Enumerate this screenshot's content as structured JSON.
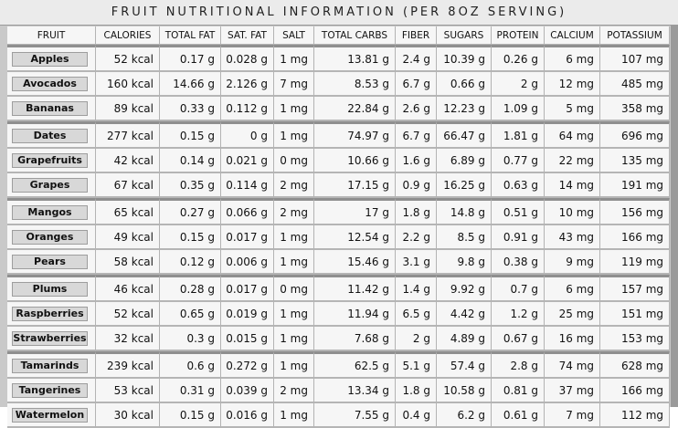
{
  "title": "FRUIT NUTRITIONAL INFORMATION (PER 8OZ SERVING)",
  "columns": [
    "FRUIT",
    "CALORIES",
    "TOTAL FAT",
    "SAT. FAT",
    "SALT",
    "TOTAL CARBS",
    "FIBER",
    "SUGARS",
    "PROTEIN",
    "CALCIUM",
    "POTASSIUM"
  ],
  "rows": [
    {
      "fruit": "Apples",
      "cells": [
        "52 kcal",
        "0.17 g",
        "0.028 g",
        "1 mg",
        "13.81 g",
        "2.4 g",
        "10.39 g",
        "0.26 g",
        "6 mg",
        "107 mg"
      ]
    },
    {
      "fruit": "Avocados",
      "cells": [
        "160 kcal",
        "14.66 g",
        "2.126 g",
        "7 mg",
        "8.53 g",
        "6.7 g",
        "0.66 g",
        "2 g",
        "12 mg",
        "485 mg"
      ]
    },
    {
      "fruit": "Bananas",
      "cells": [
        "89 kcal",
        "0.33 g",
        "0.112 g",
        "1 mg",
        "22.84 g",
        "2.6 g",
        "12.23 g",
        "1.09 g",
        "5 mg",
        "358 mg"
      ]
    },
    {
      "fruit": "Dates",
      "cells": [
        "277 kcal",
        "0.15 g",
        "0 g",
        "1 mg",
        "74.97 g",
        "6.7 g",
        "66.47 g",
        "1.81 g",
        "64 mg",
        "696 mg"
      ]
    },
    {
      "fruit": "Grapefruits",
      "cells": [
        "42 kcal",
        "0.14 g",
        "0.021 g",
        "0 mg",
        "10.66 g",
        "1.6 g",
        "6.89 g",
        "0.77 g",
        "22 mg",
        "135 mg"
      ]
    },
    {
      "fruit": "Grapes",
      "cells": [
        "67 kcal",
        "0.35 g",
        "0.114 g",
        "2 mg",
        "17.15 g",
        "0.9 g",
        "16.25 g",
        "0.63 g",
        "14 mg",
        "191 mg"
      ]
    },
    {
      "fruit": "Mangos",
      "cells": [
        "65 kcal",
        "0.27 g",
        "0.066 g",
        "2 mg",
        "17 g",
        "1.8 g",
        "14.8 g",
        "0.51 g",
        "10 mg",
        "156 mg"
      ]
    },
    {
      "fruit": "Oranges",
      "cells": [
        "49 kcal",
        "0.15 g",
        "0.017 g",
        "1 mg",
        "12.54 g",
        "2.2 g",
        "8.5 g",
        "0.91 g",
        "43 mg",
        "166 mg"
      ]
    },
    {
      "fruit": "Pears",
      "cells": [
        "58 kcal",
        "0.12 g",
        "0.006 g",
        "1 mg",
        "15.46 g",
        "3.1 g",
        "9.8 g",
        "0.38 g",
        "9 mg",
        "119 mg"
      ]
    },
    {
      "fruit": "Plums",
      "cells": [
        "46 kcal",
        "0.28 g",
        "0.017 g",
        "0 mg",
        "11.42 g",
        "1.4 g",
        "9.92 g",
        "0.7 g",
        "6 mg",
        "157 mg"
      ]
    },
    {
      "fruit": "Raspberries",
      "cells": [
        "52 kcal",
        "0.65 g",
        "0.019 g",
        "1 mg",
        "11.94 g",
        "6.5 g",
        "4.42 g",
        "1.2 g",
        "25 mg",
        "151 mg"
      ]
    },
    {
      "fruit": "Strawberries",
      "cells": [
        "32 kcal",
        "0.3 g",
        "0.015 g",
        "1 mg",
        "7.68 g",
        "2 g",
        "4.89 g",
        "0.67 g",
        "16 mg",
        "153 mg"
      ]
    },
    {
      "fruit": "Tamarinds",
      "cells": [
        "239 kcal",
        "0.6 g",
        "0.272 g",
        "1 mg",
        "62.5 g",
        "5.1 g",
        "57.4 g",
        "2.8 g",
        "74 mg",
        "628 mg"
      ]
    },
    {
      "fruit": "Tangerines",
      "cells": [
        "53 kcal",
        "0.31 g",
        "0.039 g",
        "2 mg",
        "13.34 g",
        "1.8 g",
        "10.58 g",
        "0.81 g",
        "37 mg",
        "166 mg"
      ]
    },
    {
      "fruit": "Watermelon",
      "cells": [
        "30 kcal",
        "0.15 g",
        "0.016 g",
        "1 mg",
        "7.55 g",
        "0.4 g",
        "6.2 g",
        "0.61 g",
        "7 mg",
        "112 mg"
      ]
    }
  ],
  "group_start_rows": [
    0,
    3,
    6,
    9,
    12
  ],
  "colors": {
    "background": "#c9c9c9",
    "cell": "#f6f6f6",
    "button": "#d8d8d8",
    "group_separator": "#8f8f8f"
  }
}
